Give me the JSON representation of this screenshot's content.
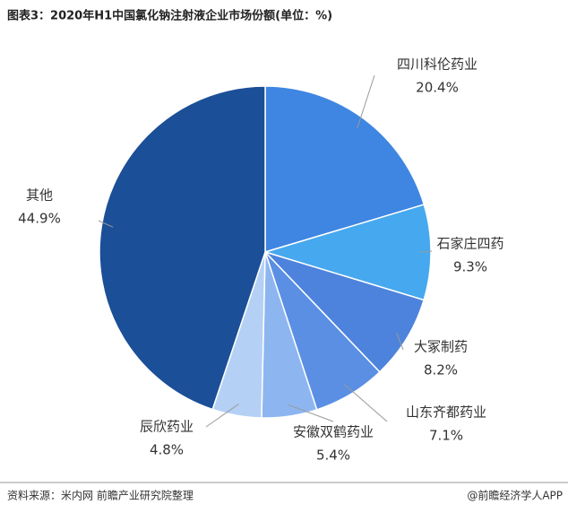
{
  "chart_data": {
    "type": "pie",
    "title": "图表3：2020年H1中国氯化钠注射液企业市场份额(单位：%)",
    "categories": [
      "四川科伦药业",
      "石家庄四药",
      "大冢制药",
      "山东齐都药业",
      "安徽双鹤药业",
      "辰欣药业",
      "其他"
    ],
    "values": [
      20.4,
      9.3,
      8.2,
      7.1,
      5.4,
      4.8,
      44.9
    ],
    "value_labels": [
      "20.4%",
      "9.3%",
      "8.2%",
      "7.1%",
      "5.4%",
      "4.8%",
      "44.9%"
    ],
    "colors": [
      "#3e86e2",
      "#46a8ee",
      "#4d83dc",
      "#5a8fe4",
      "#8db6f1",
      "#b5d0f5",
      "#1b4f97"
    ],
    "source": "资料来源：米内网 前瞻产业研究院整理",
    "credit": "@前瞻经济学人APP"
  }
}
